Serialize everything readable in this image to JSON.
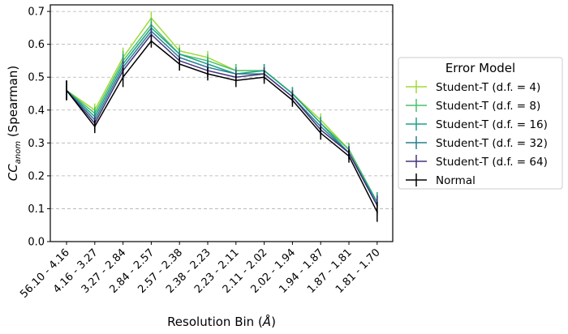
{
  "chart_data": {
    "type": "line",
    "title": "",
    "xlabel": "Resolution Bin (Å)",
    "ylabel": "CC_anom (Spearman)",
    "ylim": [
      0.0,
      0.72
    ],
    "yticks": [
      "0.0",
      "0.1",
      "0.2",
      "0.3",
      "0.4",
      "0.5",
      "0.6",
      "0.7"
    ],
    "grid": "y-dashed",
    "legend_title": "Error Model",
    "legend_placement": "right",
    "categories": [
      "56.10 - 4.16",
      "4.16 - 3.27",
      "3.27 - 2.84",
      "2.84 - 2.57",
      "2.57 - 2.38",
      "2.38 - 2.23",
      "2.23 - 2.11",
      "2.11 - 2.02",
      "2.02 - 1.94",
      "1.94 - 1.87",
      "1.87 - 1.81",
      "1.81 - 1.70"
    ],
    "series": [
      {
        "name": "Student-T (d.f. = 4)",
        "color": "#a0da39",
        "values": [
          0.46,
          0.4,
          0.56,
          0.68,
          0.58,
          0.56,
          0.52,
          0.52,
          0.45,
          0.37,
          0.28,
          0.12
        ],
        "errors": [
          0.03,
          0.02,
          0.03,
          0.02,
          0.02,
          0.02,
          0.02,
          0.02,
          0.02,
          0.02,
          0.02,
          0.03
        ]
      },
      {
        "name": "Student-T (d.f. = 8)",
        "color": "#4ac16d",
        "values": [
          0.46,
          0.39,
          0.55,
          0.66,
          0.57,
          0.55,
          0.52,
          0.52,
          0.45,
          0.36,
          0.28,
          0.12
        ],
        "errors": [
          0.03,
          0.02,
          0.03,
          0.02,
          0.02,
          0.02,
          0.02,
          0.02,
          0.02,
          0.02,
          0.02,
          0.03
        ]
      },
      {
        "name": "Student-T (d.f. = 16)",
        "color": "#1fa187",
        "values": [
          0.46,
          0.38,
          0.54,
          0.65,
          0.57,
          0.54,
          0.51,
          0.52,
          0.45,
          0.36,
          0.27,
          0.12
        ],
        "errors": [
          0.03,
          0.02,
          0.03,
          0.02,
          0.02,
          0.02,
          0.02,
          0.02,
          0.02,
          0.02,
          0.02,
          0.03
        ]
      },
      {
        "name": "Student-T (d.f. = 32)",
        "color": "#277f8e",
        "values": [
          0.46,
          0.37,
          0.53,
          0.64,
          0.56,
          0.53,
          0.51,
          0.51,
          0.44,
          0.35,
          0.27,
          0.11
        ],
        "errors": [
          0.03,
          0.02,
          0.03,
          0.02,
          0.02,
          0.02,
          0.02,
          0.02,
          0.02,
          0.02,
          0.02,
          0.03
        ]
      },
      {
        "name": "Student-T (d.f. = 64)",
        "color": "#46327e",
        "values": [
          0.46,
          0.36,
          0.52,
          0.63,
          0.55,
          0.52,
          0.5,
          0.51,
          0.44,
          0.34,
          0.27,
          0.11
        ],
        "errors": [
          0.03,
          0.02,
          0.03,
          0.02,
          0.02,
          0.02,
          0.02,
          0.02,
          0.02,
          0.02,
          0.02,
          0.03
        ]
      },
      {
        "name": "Normal",
        "color": "#000000",
        "values": [
          0.46,
          0.35,
          0.5,
          0.61,
          0.54,
          0.51,
          0.49,
          0.5,
          0.43,
          0.33,
          0.26,
          0.09
        ],
        "errors": [
          0.03,
          0.02,
          0.03,
          0.02,
          0.02,
          0.02,
          0.02,
          0.02,
          0.02,
          0.02,
          0.02,
          0.03
        ]
      }
    ]
  }
}
